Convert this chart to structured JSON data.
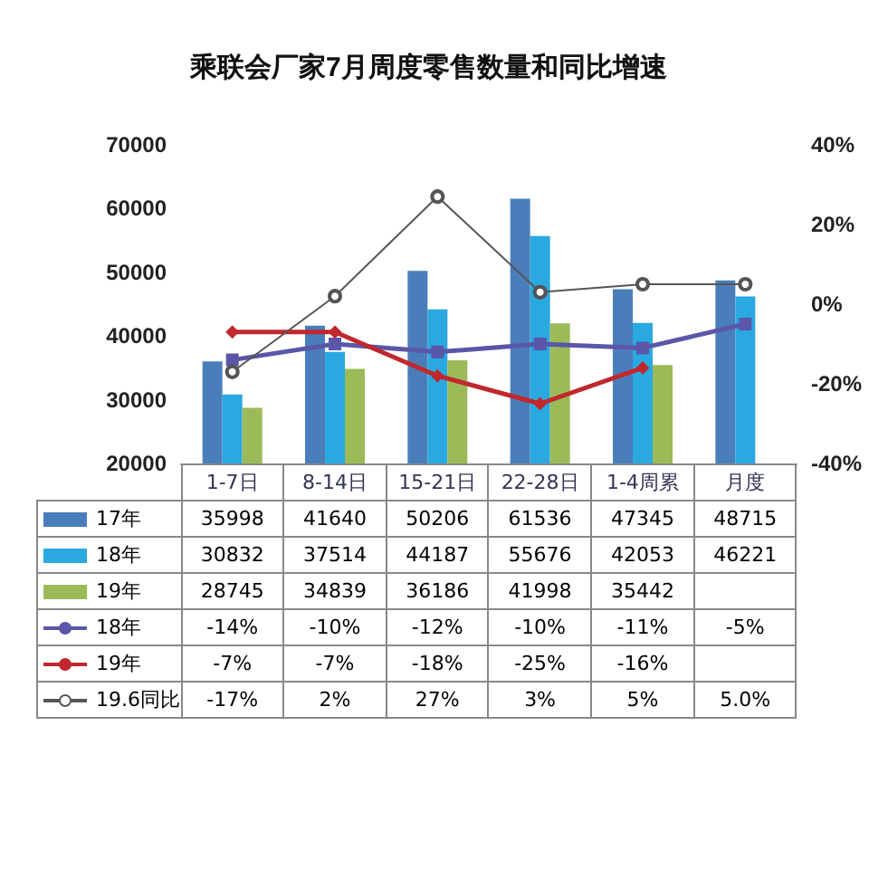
{
  "chart_data": {
    "type": "bar",
    "title": "乘联会厂家7月周度零售数量和同比增速",
    "categories": [
      "1-7日",
      "8-14日",
      "15-21日",
      "22-28日",
      "1-4周累",
      "月度"
    ],
    "ylim": [
      20000,
      70000
    ],
    "yticks": [
      20000,
      30000,
      40000,
      50000,
      60000,
      70000
    ],
    "y2lim": [
      -40,
      40
    ],
    "y2ticks": [
      {
        "value": -40,
        "label": "-40%"
      },
      {
        "value": -20,
        "label": "-20%"
      },
      {
        "value": 0,
        "label": "0%"
      },
      {
        "value": 20,
        "label": "20%"
      },
      {
        "value": 40,
        "label": "40%"
      }
    ],
    "legend": "bottom",
    "series": [
      {
        "name": "17年",
        "color": "#4a7ebb",
        "values": [
          35998,
          41640,
          50206,
          61536,
          47345,
          48715
        ],
        "value_labels": [
          "35998",
          "41640",
          "50206",
          "61536",
          "47345",
          "48715"
        ]
      },
      {
        "name": "18年",
        "color": "#2aa8e0",
        "values": [
          30832,
          37514,
          44187,
          55676,
          42053,
          46221
        ],
        "value_labels": [
          "30832",
          "37514",
          "44187",
          "55676",
          "42053",
          "46221"
        ]
      },
      {
        "name": "19年",
        "color": "#9bbb59",
        "values": [
          28745,
          34839,
          36186,
          41998,
          35442,
          null
        ],
        "value_labels": [
          "28745",
          "34839",
          "36186",
          "41998",
          "35442",
          null
        ]
      },
      {
        "name": "18年",
        "type": "line",
        "axis": "y2",
        "color": "#5a56a8",
        "marker": "square",
        "values": [
          -14,
          -10,
          -12,
          -10,
          -11,
          -5
        ],
        "value_labels": [
          "-14%",
          "-10%",
          "-12%",
          "-10%",
          "-11%",
          "-5%"
        ]
      },
      {
        "name": "19年",
        "type": "line",
        "axis": "y2",
        "color": "#c0282d",
        "marker": "diamond",
        "values": [
          -7,
          -7,
          -18,
          -25,
          -16,
          null
        ],
        "value_labels": [
          "-7%",
          "-7%",
          "-18%",
          "-25%",
          "-16%",
          null
        ]
      },
      {
        "name": "19.6同比",
        "type": "line",
        "axis": "y2",
        "color": "#555555",
        "marker": "circle",
        "values": [
          -17,
          2,
          27,
          3,
          5,
          5
        ],
        "value_labels": [
          "-17%",
          "2%",
          "27%",
          "3%",
          "5%",
          "5.0%"
        ]
      }
    ]
  }
}
